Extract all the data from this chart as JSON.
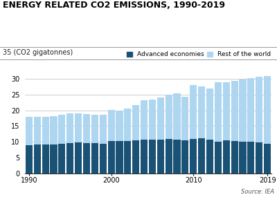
{
  "years": [
    1990,
    1991,
    1992,
    1993,
    1994,
    1995,
    1996,
    1997,
    1998,
    1999,
    2000,
    2001,
    2002,
    2003,
    2004,
    2005,
    2006,
    2007,
    2008,
    2009,
    2010,
    2011,
    2012,
    2013,
    2014,
    2015,
    2016,
    2017,
    2018,
    2019
  ],
  "advanced": [
    9.0,
    9.1,
    9.1,
    9.1,
    9.3,
    9.5,
    9.8,
    9.7,
    9.5,
    9.4,
    10.3,
    10.3,
    10.3,
    10.5,
    10.8,
    10.8,
    10.8,
    11.0,
    10.8,
    10.5,
    11.0,
    11.1,
    10.7,
    10.0,
    10.5,
    10.3,
    10.0,
    10.0,
    9.8,
    9.3
  ],
  "rest": [
    9.0,
    8.9,
    8.9,
    9.0,
    9.3,
    9.5,
    9.3,
    9.2,
    9.2,
    9.3,
    9.8,
    9.7,
    10.2,
    11.2,
    12.3,
    12.7,
    13.3,
    13.9,
    14.5,
    13.8,
    17.0,
    16.5,
    16.2,
    18.8,
    18.5,
    19.0,
    19.7,
    20.3,
    20.9,
    21.6
  ],
  "title": "ENERGY RELATED CO2 EMISSIONS, 1990-2019",
  "sublabel": "35 (CO2 gigatonnes)",
  "color_advanced": "#1a5276",
  "color_rest": "#aed6f1",
  "legend_advanced": "Advanced economies",
  "legend_rest": "Rest of the world",
  "source": "Source: IEA",
  "ylim": [
    0,
    35
  ],
  "yticks": [
    0,
    5,
    10,
    15,
    20,
    25,
    30
  ],
  "xtick_years": [
    1990,
    2000,
    2010,
    2019
  ],
  "background": "#ffffff"
}
